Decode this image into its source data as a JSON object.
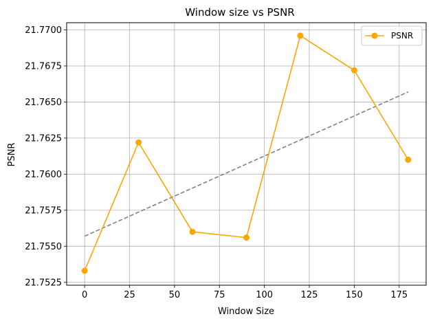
{
  "chart_data": {
    "type": "line",
    "title": "Window size vs PSNR",
    "xlabel": "Window Size",
    "ylabel": "PSNR",
    "xlim": [
      -10,
      190
    ],
    "ylim": [
      21.7523,
      21.7705
    ],
    "xticks": [
      0,
      25,
      50,
      75,
      100,
      125,
      150,
      175
    ],
    "xtick_labels": [
      "0",
      "25",
      "50",
      "75",
      "100",
      "125",
      "150",
      "175"
    ],
    "yticks": [
      21.7525,
      21.755,
      21.7575,
      21.76,
      21.7625,
      21.765,
      21.7675,
      21.77
    ],
    "ytick_labels": [
      "21.7525",
      "21.7550",
      "21.7575",
      "21.7600",
      "21.7625",
      "21.7650",
      "21.7675",
      "21.7700"
    ],
    "grid": true,
    "legend_position": "top-right",
    "series": [
      {
        "name": "PSNR",
        "color": "#ffa500",
        "marker": "circle",
        "x": [
          0,
          30,
          60,
          90,
          120,
          150,
          180
        ],
        "y": [
          21.7533,
          21.7622,
          21.756,
          21.7556,
          21.7696,
          21.7672,
          21.761
        ]
      }
    ],
    "trendline": {
      "color": "#808080",
      "style": "dashed",
      "x": [
        0,
        180
      ],
      "y": [
        21.7557,
        21.7657
      ]
    }
  }
}
